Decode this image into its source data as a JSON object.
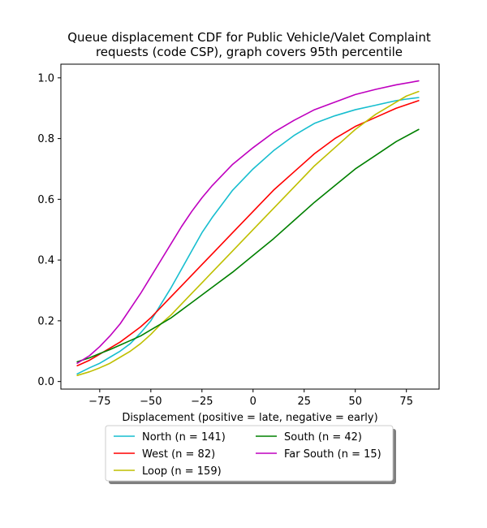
{
  "chart_data": {
    "type": "line",
    "title_lines": [
      "Queue displacement CDF for Public Vehicle/Valet Complaint",
      "requests (code CSP), graph covers 95th percentile"
    ],
    "xlabel": "Displacement (positive = late, negative = early)",
    "ylabel": "",
    "xlim": [
      -94,
      91
    ],
    "ylim": [
      -0.025,
      1.045
    ],
    "xticks": [
      -75,
      -50,
      -25,
      0,
      25,
      50,
      75
    ],
    "xtick_labels": [
      "−75",
      "−50",
      "−25",
      "0",
      "25",
      "50",
      "75"
    ],
    "yticks": [
      0.0,
      0.2,
      0.4,
      0.6,
      0.8,
      1.0
    ],
    "ytick_labels": [
      "0.0",
      "0.2",
      "0.4",
      "0.6",
      "0.8",
      "1.0"
    ],
    "grid": false,
    "legend_position": "below plot, two columns",
    "series": [
      {
        "name": "North (n = 141)",
        "color": "#17becf",
        "x": [
          -86,
          -80,
          -75,
          -70,
          -65,
          -60,
          -55,
          -50,
          -45,
          -40,
          -35,
          -30,
          -25,
          -20,
          -10,
          0,
          10,
          20,
          25,
          30,
          40,
          50,
          60,
          70,
          75,
          81
        ],
        "y": [
          0.025,
          0.045,
          0.06,
          0.08,
          0.1,
          0.125,
          0.16,
          0.2,
          0.255,
          0.31,
          0.37,
          0.43,
          0.49,
          0.54,
          0.63,
          0.7,
          0.76,
          0.81,
          0.83,
          0.85,
          0.875,
          0.895,
          0.91,
          0.925,
          0.93,
          0.935
        ]
      },
      {
        "name": "West (n = 82)",
        "color": "#ff0000",
        "x": [
          -86,
          -80,
          -75,
          -70,
          -65,
          -60,
          -55,
          -50,
          -45,
          -40,
          -35,
          -30,
          -25,
          -20,
          -10,
          0,
          10,
          20,
          30,
          40,
          50,
          60,
          70,
          81
        ],
        "y": [
          0.052,
          0.07,
          0.09,
          0.11,
          0.13,
          0.155,
          0.18,
          0.21,
          0.245,
          0.28,
          0.315,
          0.35,
          0.385,
          0.42,
          0.49,
          0.56,
          0.63,
          0.69,
          0.75,
          0.8,
          0.84,
          0.87,
          0.9,
          0.925
        ]
      },
      {
        "name": "Loop (n = 159)",
        "color": "#bfbf00",
        "x": [
          -86,
          -80,
          -75,
          -70,
          -65,
          -60,
          -55,
          -50,
          -45,
          -40,
          -35,
          -30,
          -25,
          -20,
          -10,
          0,
          10,
          20,
          30,
          40,
          50,
          60,
          70,
          75,
          81
        ],
        "y": [
          0.02,
          0.032,
          0.045,
          0.06,
          0.08,
          0.1,
          0.125,
          0.155,
          0.19,
          0.22,
          0.255,
          0.29,
          0.325,
          0.36,
          0.43,
          0.5,
          0.57,
          0.64,
          0.71,
          0.77,
          0.83,
          0.88,
          0.92,
          0.94,
          0.955
        ]
      },
      {
        "name": "South (n = 42)",
        "color": "#008000",
        "x": [
          -86,
          -80,
          -75,
          -70,
          -65,
          -60,
          -55,
          -50,
          -45,
          -40,
          -35,
          -30,
          -25,
          -20,
          -10,
          0,
          10,
          20,
          30,
          40,
          50,
          60,
          70,
          81
        ],
        "y": [
          0.065,
          0.078,
          0.092,
          0.105,
          0.12,
          0.135,
          0.15,
          0.17,
          0.19,
          0.21,
          0.235,
          0.26,
          0.285,
          0.31,
          0.36,
          0.415,
          0.47,
          0.53,
          0.59,
          0.645,
          0.7,
          0.745,
          0.79,
          0.83
        ]
      },
      {
        "name": "Far South (n = 15)",
        "color": "#bf00bf",
        "x": [
          -86,
          -80,
          -75,
          -70,
          -65,
          -60,
          -55,
          -50,
          -45,
          -40,
          -35,
          -30,
          -25,
          -20,
          -10,
          0,
          10,
          20,
          30,
          40,
          50,
          60,
          70,
          81
        ],
        "y": [
          0.06,
          0.085,
          0.115,
          0.15,
          0.19,
          0.24,
          0.29,
          0.345,
          0.4,
          0.455,
          0.51,
          0.56,
          0.605,
          0.645,
          0.715,
          0.77,
          0.82,
          0.86,
          0.895,
          0.92,
          0.945,
          0.962,
          0.977,
          0.99
        ]
      }
    ]
  }
}
